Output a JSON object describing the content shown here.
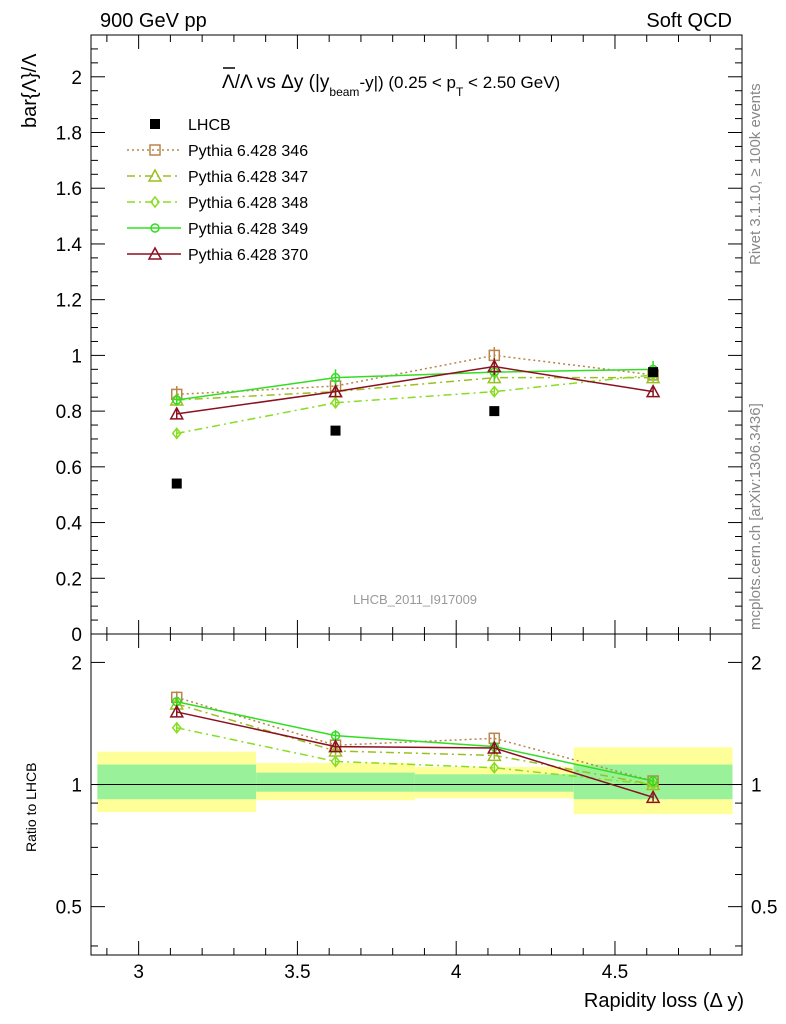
{
  "header": {
    "left": "900 GeV pp",
    "right": "Soft QCD"
  },
  "side_labels": {
    "rivet": "Rivet 3.1.10, ≥ 100k events",
    "mcplots": "mcplots.cern.ch [arXiv:1306.3436]"
  },
  "title": {
    "main": "Λ/Λ vs Δy (|y",
    "sub_beam": "beam",
    "mid": "-y|) (0.25 < p",
    "sub_t": "T",
    "end": " < 2.50 GeV)"
  },
  "analysis_id": "LHCB_2011_I917009",
  "ylabel_main": "bar{Λ}/Λ",
  "ylabel_ratio": "Ratio to LHCB",
  "xlabel": "Rapidity loss (Δ y)",
  "chart_data": {
    "type": "scatter",
    "x_ticks": [
      "3",
      "3.5",
      "4",
      "4.5"
    ],
    "xlim": [
      2.85,
      4.9
    ],
    "main": {
      "ylim": [
        0,
        2.15
      ],
      "y_ticks": [
        "0",
        "0.2",
        "0.4",
        "0.6",
        "0.8",
        "1",
        "1.2",
        "1.4",
        "1.6",
        "1.8",
        "2"
      ]
    },
    "ratio": {
      "ylim": [
        0.38,
        2.35
      ],
      "log": true,
      "y_ticks": [
        "0.5",
        "1",
        "2"
      ]
    },
    "x": [
      3.12,
      3.62,
      4.12,
      4.62
    ],
    "data": {
      "name": "LHCB",
      "values": [
        0.54,
        0.73,
        0.8,
        0.94
      ]
    },
    "bands": [
      {
        "x": [
          2.87,
          3.37
        ],
        "inner": [
          0.92,
          1.12
        ],
        "outer": [
          0.855,
          1.205
        ]
      },
      {
        "x": [
          3.37,
          3.87
        ],
        "inner": [
          0.96,
          1.07
        ],
        "outer": [
          0.915,
          1.13
        ]
      },
      {
        "x": [
          3.87,
          4.37
        ],
        "inner": [
          0.96,
          1.06
        ],
        "outer": [
          0.925,
          1.105
        ]
      },
      {
        "x": [
          4.37,
          4.87
        ],
        "inner": [
          0.92,
          1.12
        ],
        "outer": [
          0.845,
          1.235
        ]
      }
    ],
    "series": [
      {
        "name": "Pythia 6.428 346",
        "color": "#b8854a",
        "dash": "2,3",
        "marker": "square",
        "values": [
          0.86,
          0.89,
          1.0,
          0.93
        ],
        "errors": [
          0.03,
          0.02,
          0.03,
          0.02
        ],
        "ratio": [
          1.64,
          1.25,
          1.3,
          1.02
        ]
      },
      {
        "name": "Pythia 6.428 347",
        "color": "#9abf20",
        "dash": "8,4,2,4",
        "marker": "triangle",
        "values": [
          0.84,
          0.87,
          0.92,
          0.92
        ],
        "errors": [
          0.02,
          0.02,
          0.02,
          0.02
        ],
        "ratio": [
          1.58,
          1.21,
          1.18,
          1.0
        ]
      },
      {
        "name": "Pythia 6.428 348",
        "color": "#88dd22",
        "dash": "8,4,2,4",
        "marker": "diamond",
        "values": [
          0.72,
          0.83,
          0.87,
          0.93
        ],
        "errors": [
          0.02,
          0.02,
          0.02,
          0.02
        ],
        "ratio": [
          1.38,
          1.14,
          1.1,
          1.0
        ]
      },
      {
        "name": "Pythia 6.428 349",
        "color": "#33dd22",
        "dash": "",
        "marker": "circle",
        "values": [
          0.84,
          0.92,
          0.94,
          0.95
        ],
        "errors": [
          0.02,
          0.03,
          0.03,
          0.03
        ],
        "ratio": [
          1.6,
          1.32,
          1.24,
          1.02
        ]
      },
      {
        "name": "Pythia 6.428 370",
        "color": "#8b1020",
        "dash": "",
        "marker": "triangle",
        "values": [
          0.79,
          0.87,
          0.96,
          0.87
        ],
        "errors": [
          0.02,
          0.02,
          0.03,
          0.02
        ],
        "ratio": [
          1.51,
          1.24,
          1.23,
          0.93
        ]
      }
    ]
  }
}
